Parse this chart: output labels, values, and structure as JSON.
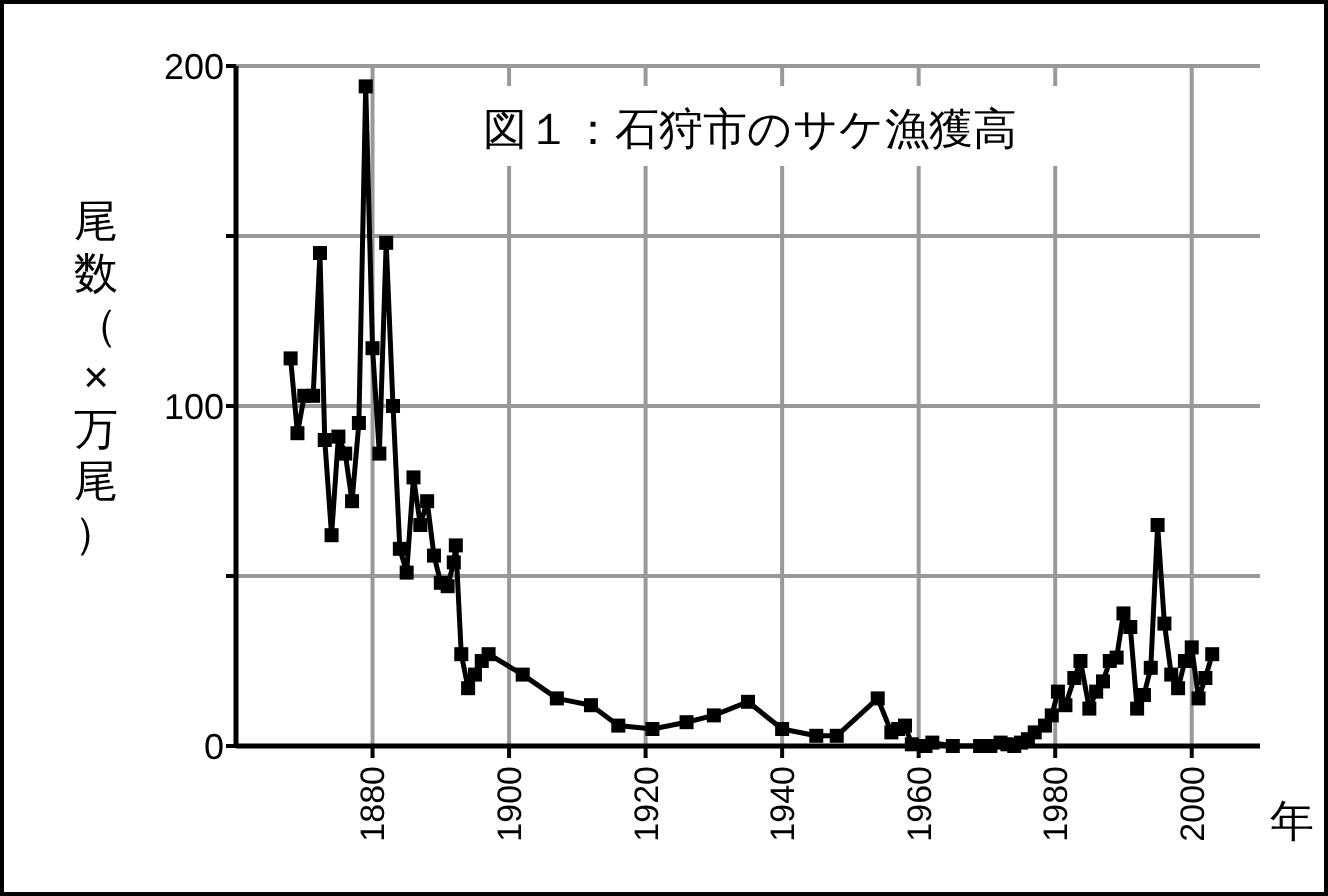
{
  "chart_data": {
    "type": "line",
    "title": "図１：石狩市のサケ漁獲高",
    "ylabel": "尾数（×万尾）",
    "xlabel": "年",
    "xlim": [
      1860,
      2010
    ],
    "xticks": [
      1880,
      1900,
      1920,
      1940,
      1960,
      1980,
      2000
    ],
    "ylim": [
      0,
      200
    ],
    "yticks": [
      0,
      {
        "value": 50,
        "label": null
      },
      100,
      {
        "value": 150,
        "label": null
      },
      200
    ],
    "grid": true,
    "marker": "square",
    "series": [
      {
        "color": "#000000",
        "x": [
          1868,
          1869,
          1870,
          1871.3,
          1872.3,
          1873,
          1874,
          1875,
          1876,
          1877,
          1878,
          1879,
          1880,
          1881,
          1882,
          1883,
          1884,
          1885,
          1886,
          1887,
          1888,
          1889,
          1890,
          1891,
          1891.9,
          1892.2,
          1893,
          1894,
          1895,
          1896,
          1897,
          1902,
          1907,
          1912,
          1916,
          1921,
          1926,
          1930,
          1935,
          1940,
          1945,
          1948,
          1954,
          1956,
          1957,
          1958,
          1959,
          1961,
          1962,
          1965,
          1969,
          1970.5,
          1972,
          1973,
          1974,
          1975,
          1976,
          1977,
          1978.5,
          1979.5,
          1980.4,
          1981.5,
          1982.8,
          1983.7,
          1985,
          1986,
          1987,
          1988,
          1989,
          1990,
          1991,
          1992,
          1993,
          1994,
          1995,
          1996,
          1997,
          1998,
          1999,
          2000,
          2001,
          2002,
          2003
        ],
        "values": [
          114,
          92,
          103,
          103,
          145,
          90,
          62,
          91,
          86,
          72,
          95,
          194,
          117,
          86,
          148,
          100,
          58,
          51,
          79,
          65,
          72,
          56,
          48,
          47,
          54,
          59,
          27,
          17,
          21,
          25,
          27,
          21,
          14,
          12,
          6,
          5,
          7,
          9,
          13,
          5,
          3,
          3,
          14,
          4,
          5,
          6,
          0.5,
          0,
          1,
          0,
          0,
          0,
          1,
          0.5,
          0,
          1,
          2,
          4,
          6,
          9,
          16,
          12,
          20,
          25,
          11,
          16,
          19,
          25,
          26,
          39,
          35,
          11,
          15,
          23,
          65,
          36,
          21,
          17,
          25,
          29,
          14,
          20,
          27
        ]
      }
    ]
  }
}
